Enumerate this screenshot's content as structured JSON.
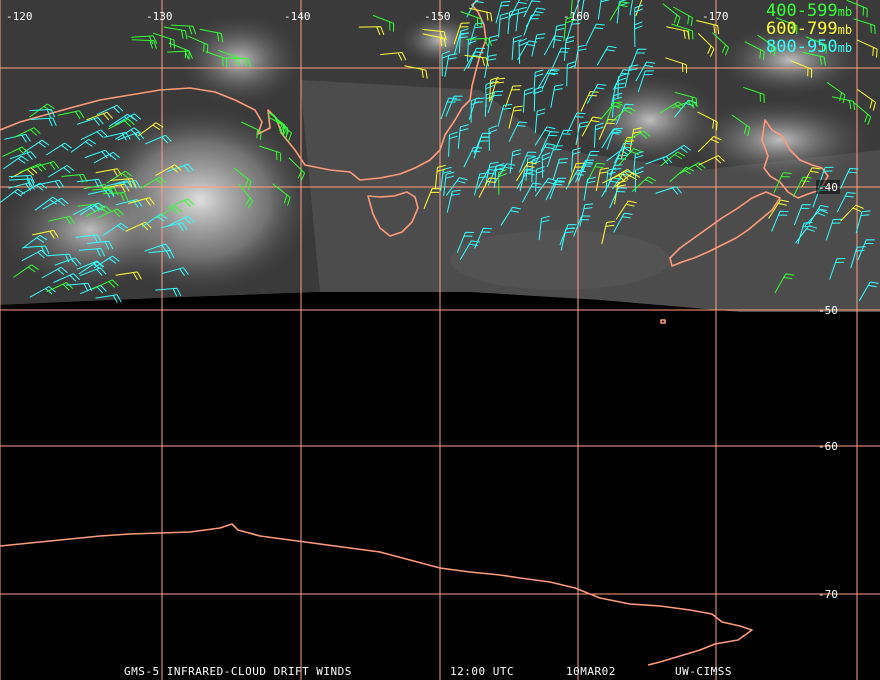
{
  "legend": [
    {
      "range": "400-599",
      "unit": "mb",
      "color": "#33ff33"
    },
    {
      "range": "600-799",
      "unit": "mb",
      "color": "#ffff33"
    },
    {
      "range": "800-950",
      "unit": "mb",
      "color": "#33ffff"
    }
  ],
  "grid": {
    "line_color": "#ff9f80",
    "coast_color": "#ff9a7a",
    "lon_labels": [
      "-120",
      "-130",
      "-140",
      "-150",
      "-160",
      "-170"
    ],
    "lat_labels": [
      "-40",
      "-50",
      "-60",
      "-70"
    ]
  },
  "caption": {
    "product": "GMS-5 INFRARED-CLOUD DRIFT WINDS",
    "time": "12:00 UTC",
    "date": "10MAR02",
    "source": "UW-CIMSS"
  }
}
